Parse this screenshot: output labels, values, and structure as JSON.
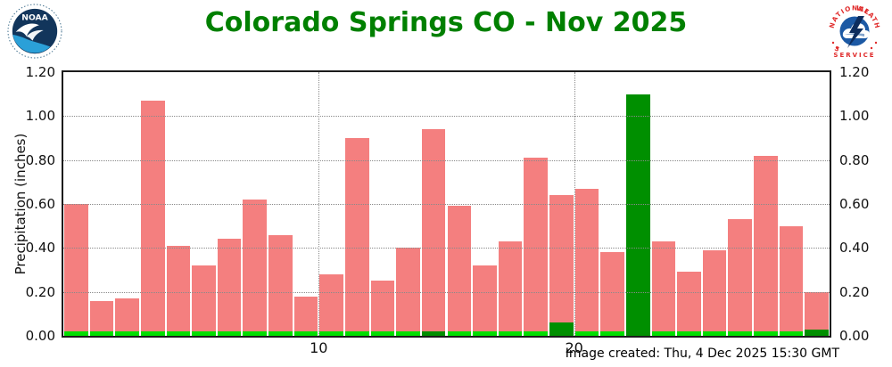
{
  "header": {
    "title": "Colorado Springs CO - Nov 2025",
    "title_color": "#008000",
    "noaa_logo_alt": "NOAA",
    "nws_logo_alt": "National Weather Service"
  },
  "footer": {
    "created_text": "Image created: Thu, 4 Dec 2025 15:30 GMT"
  },
  "colors": {
    "salmon_bar": "#F47F7F",
    "bright_green_bar": "#00DE00",
    "dark_green_bar": "#008F00",
    "bar_gap": "#FFFFFF",
    "grid": "#8A8A8A",
    "frame": "#1B1B1B",
    "title_green": "#008000"
  },
  "chart_data": {
    "type": "bar",
    "title": "Colorado Springs CO - Nov 2025",
    "xlabel": "",
    "ylabel": "Precipitation (inches)",
    "ylim": [
      0.0,
      1.2
    ],
    "yticks": [
      0.0,
      0.2,
      0.4,
      0.6,
      0.8,
      1.0,
      1.2
    ],
    "ytick_labels": [
      "0.00",
      "0.20",
      "0.40",
      "0.60",
      "0.80",
      "1.00",
      "1.20"
    ],
    "ytick_labels_right": [
      "0.00",
      "0.20",
      "0.40",
      "0.60",
      "0.80",
      "1.00",
      "1.20"
    ],
    "grid": "dotted, horizontal at each ytick and vertical at xticks, drawn over bars",
    "legend_position": "none",
    "x": [
      1,
      2,
      3,
      4,
      5,
      6,
      7,
      8,
      9,
      10,
      11,
      12,
      13,
      14,
      15,
      16,
      17,
      18,
      19,
      20,
      21,
      22,
      23,
      24,
      25,
      26,
      27,
      28,
      29,
      30
    ],
    "xticks": [
      10,
      20
    ],
    "xtick_labels": [
      "10",
      "20"
    ],
    "series": [
      {
        "name": "salmon_bars",
        "color": "#F47F7F",
        "values": [
          0.6,
          0.16,
          0.17,
          1.07,
          0.41,
          0.32,
          0.44,
          0.62,
          0.46,
          0.18,
          0.28,
          0.9,
          0.25,
          0.4,
          0.94,
          0.59,
          0.32,
          0.43,
          0.81,
          0.64,
          0.67,
          0.38,
          null,
          0.43,
          0.29,
          0.39,
          0.53,
          0.82,
          0.5,
          0.2
        ]
      },
      {
        "name": "bright_green_bars",
        "color": "#00DE00",
        "values": [
          0.02,
          0.02,
          0.02,
          0.02,
          0.02,
          0.02,
          0.02,
          0.02,
          0.02,
          0.02,
          0.02,
          0.02,
          0.02,
          0.02,
          0.02,
          0.02,
          0.02,
          0.02,
          0.02,
          0.02,
          0.02,
          0.02,
          null,
          0.02,
          0.02,
          0.02,
          0.02,
          0.02,
          0.02,
          0.02
        ]
      },
      {
        "name": "dark_green_bars",
        "color": "#008F00",
        "values": [
          null,
          null,
          null,
          null,
          null,
          null,
          null,
          null,
          null,
          null,
          null,
          null,
          null,
          null,
          0.02,
          null,
          null,
          null,
          null,
          0.06,
          null,
          null,
          1.1,
          null,
          null,
          null,
          null,
          null,
          null,
          0.03
        ]
      }
    ]
  }
}
